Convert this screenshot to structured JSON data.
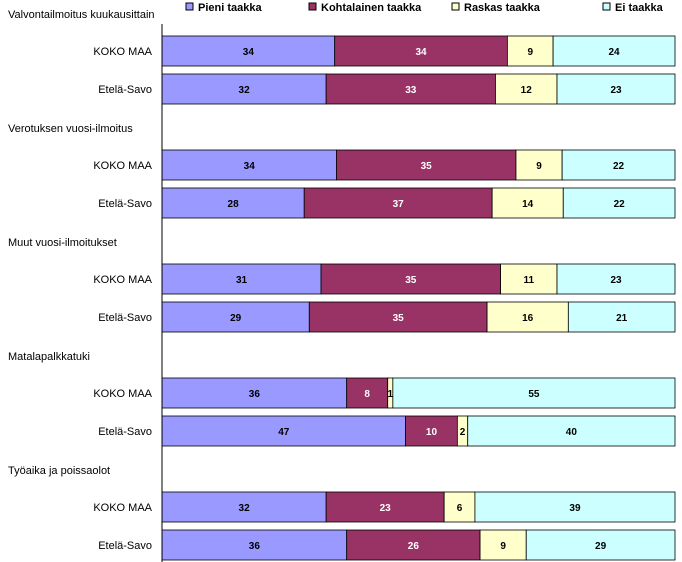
{
  "chart_data": {
    "type": "bar",
    "orientation": "horizontal",
    "stacked": "percent",
    "legend_position": "top",
    "grid": false,
    "series": [
      {
        "name": "Pieni taakka",
        "color": "#9999ff"
      },
      {
        "name": "Kohtalainen taakka",
        "color": "#993366"
      },
      {
        "name": "Raskas taakka",
        "color": "#ffffcc"
      },
      {
        "name": "Ei taakka",
        "color": "#ccffff"
      }
    ],
    "groups": [
      {
        "title": "Valvontailmoitus kuukausittain",
        "rows": [
          {
            "label": "KOKO MAA",
            "values": [
              34,
              34,
              9,
              24
            ]
          },
          {
            "label": "Etelä-Savo",
            "values": [
              32,
              33,
              12,
              23
            ]
          }
        ]
      },
      {
        "title": "Verotuksen vuosi-ilmoitus",
        "rows": [
          {
            "label": "KOKO MAA",
            "values": [
              34,
              35,
              9,
              22
            ]
          },
          {
            "label": "Etelä-Savo",
            "values": [
              28,
              37,
              14,
              22
            ]
          }
        ]
      },
      {
        "title": "Muut vuosi-ilmoitukset",
        "rows": [
          {
            "label": "KOKO MAA",
            "values": [
              31,
              35,
              11,
              23
            ]
          },
          {
            "label": "Etelä-Savo",
            "values": [
              29,
              35,
              16,
              21
            ]
          }
        ]
      },
      {
        "title": "Matalapalkkatuki",
        "rows": [
          {
            "label": "KOKO MAA",
            "values": [
              36,
              8,
              1,
              55
            ]
          },
          {
            "label": "Etelä-Savo",
            "values": [
              47,
              10,
              2,
              40
            ]
          }
        ]
      },
      {
        "title": "Työaika ja poissaolot",
        "rows": [
          {
            "label": "KOKO MAA",
            "values": [
              32,
              23,
              6,
              39
            ]
          },
          {
            "label": "Etelä-Savo",
            "values": [
              36,
              26,
              9,
              29
            ]
          }
        ]
      }
    ]
  }
}
